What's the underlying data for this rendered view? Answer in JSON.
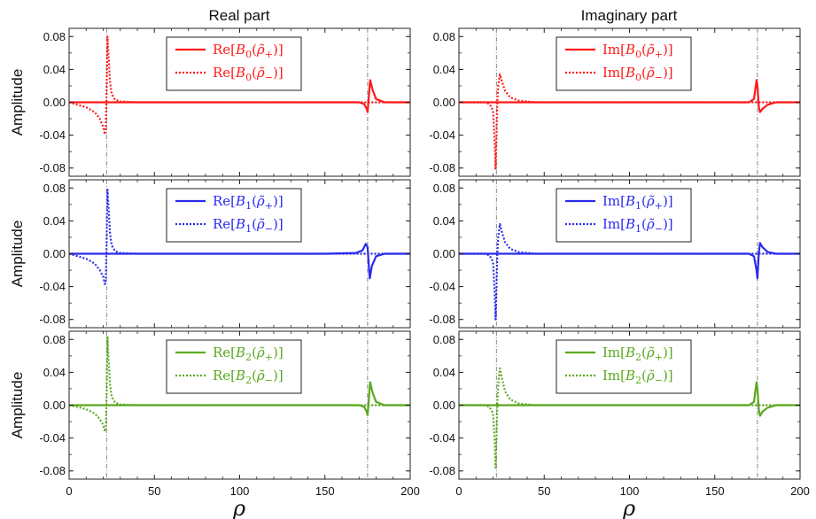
{
  "figure": {
    "col_titles": [
      "Real part",
      "Imaginary part"
    ],
    "ylabel": "Amplitude",
    "xlabel": "ρ",
    "colors": {
      "B0": "#ff1a1a",
      "B1": "#2a2aee",
      "B2": "#5aa81e",
      "vline": "#888888"
    },
    "line_styles": {
      "plus": "solid",
      "minus": "dotted"
    }
  },
  "chart_data": [
    {
      "type": "line",
      "row": 0,
      "col": 0,
      "xlim": [
        0,
        200
      ],
      "ylim": [
        -0.09,
        0.09
      ],
      "xticks": [
        0,
        50,
        100,
        150,
        200
      ],
      "yticks": [
        -0.08,
        -0.04,
        0.0,
        0.04,
        0.08
      ],
      "ytick_labels": [
        "-0.08",
        "-0.04",
        "0.00",
        "0.04",
        "0.08"
      ],
      "vlines": [
        22,
        175
      ],
      "series": [
        {
          "name": "Re[B0(ρ̃+)]",
          "legend": {
            "op": "Re",
            "sub": "0",
            "sign": "+"
          },
          "style": "solid",
          "color": "#ff1a1a",
          "x": [
            0,
            150,
            170,
            173,
            174.5,
            175,
            175.5,
            176.5,
            178,
            180,
            185,
            200
          ],
          "y": [
            0,
            0,
            0,
            -0.002,
            -0.008,
            -0.012,
            0.0,
            0.027,
            0.015,
            0.004,
            0.0,
            0
          ]
        },
        {
          "name": "Re[B0(ρ̃−)]",
          "legend": {
            "op": "Re",
            "sub": "0",
            "sign": "−"
          },
          "style": "dotted",
          "color": "#ff1a1a",
          "x": [
            0,
            5,
            10,
            15,
            18,
            20,
            21,
            21.5,
            22,
            22.5,
            23,
            24,
            25,
            27,
            30,
            40,
            200
          ],
          "y": [
            0,
            -0.003,
            -0.006,
            -0.012,
            -0.02,
            -0.03,
            -0.039,
            -0.03,
            0.01,
            0.08,
            0.06,
            0.025,
            0.01,
            0.003,
            0.001,
            0,
            0
          ]
        }
      ]
    },
    {
      "type": "line",
      "row": 0,
      "col": 1,
      "xlim": [
        0,
        200
      ],
      "ylim": [
        -0.09,
        0.09
      ],
      "xticks": [
        0,
        50,
        100,
        150,
        200
      ],
      "yticks": [
        -0.08,
        -0.04,
        0.0,
        0.04,
        0.08
      ],
      "ytick_labels": [
        "-0.08",
        "-0.04",
        "0.00",
        "0.04",
        "0.08"
      ],
      "vlines": [
        22,
        175
      ],
      "series": [
        {
          "name": "Im[B0(ρ̃+)]",
          "legend": {
            "op": "Im",
            "sub": "0",
            "sign": "+"
          },
          "style": "solid",
          "color": "#ff1a1a",
          "x": [
            0,
            150,
            170,
            173,
            174.5,
            175,
            175.8,
            176.5,
            178,
            181,
            186,
            200
          ],
          "y": [
            0,
            0,
            0,
            0.004,
            0.027,
            0.02,
            -0.005,
            -0.012,
            -0.008,
            -0.003,
            0,
            0
          ]
        },
        {
          "name": "Im[B0(ρ̃−)]",
          "legend": {
            "op": "Im",
            "sub": "0",
            "sign": "−"
          },
          "style": "dotted",
          "color": "#ff1a1a",
          "x": [
            0,
            15,
            18,
            20,
            21,
            21.5,
            22,
            22.5,
            23,
            24,
            25,
            27,
            30,
            35,
            45,
            200
          ],
          "y": [
            0,
            0,
            -0.002,
            -0.01,
            -0.05,
            -0.082,
            -0.04,
            0.0,
            0.02,
            0.034,
            0.027,
            0.014,
            0.006,
            0.002,
            0,
            0
          ]
        }
      ]
    },
    {
      "type": "line",
      "row": 1,
      "col": 0,
      "xlim": [
        0,
        200
      ],
      "ylim": [
        -0.09,
        0.09
      ],
      "xticks": [
        0,
        50,
        100,
        150,
        200
      ],
      "yticks": [
        -0.08,
        -0.04,
        0.0,
        0.04,
        0.08
      ],
      "ytick_labels": [
        "-0.08",
        "-0.04",
        "0.00",
        "0.04",
        "0.08"
      ],
      "vlines": [
        22,
        175
      ],
      "series": [
        {
          "name": "Re[B1(ρ̃+)]",
          "legend": {
            "op": "Re",
            "sub": "1",
            "sign": "+"
          },
          "style": "solid",
          "color": "#2a2aee",
          "x": [
            0,
            150,
            168,
            172,
            174,
            175,
            175.6,
            176.3,
            177.5,
            180,
            185,
            200
          ],
          "y": [
            0,
            0,
            0.001,
            0.004,
            0.012,
            0.008,
            -0.01,
            -0.03,
            -0.015,
            -0.003,
            0,
            0
          ]
        },
        {
          "name": "Re[B1(ρ̃−)]",
          "legend": {
            "op": "Re",
            "sub": "1",
            "sign": "−"
          },
          "style": "dotted",
          "color": "#2a2aee",
          "x": [
            0,
            5,
            10,
            15,
            18,
            20,
            21,
            21.5,
            22,
            22.5,
            23,
            24,
            25,
            27,
            30,
            40,
            200
          ],
          "y": [
            0,
            -0.003,
            -0.006,
            -0.012,
            -0.02,
            -0.028,
            -0.037,
            -0.03,
            0.01,
            0.078,
            0.06,
            0.025,
            0.01,
            0.003,
            0.001,
            0,
            0
          ]
        }
      ]
    },
    {
      "type": "line",
      "row": 1,
      "col": 1,
      "xlim": [
        0,
        200
      ],
      "ylim": [
        -0.09,
        0.09
      ],
      "xticks": [
        0,
        50,
        100,
        150,
        200
      ],
      "yticks": [
        -0.08,
        -0.04,
        0.0,
        0.04,
        0.08
      ],
      "ytick_labels": [
        "-0.08",
        "-0.04",
        "0.00",
        "0.04",
        "0.08"
      ],
      "vlines": [
        22,
        175
      ],
      "series": [
        {
          "name": "Im[B1(ρ̃+)]",
          "legend": {
            "op": "Im",
            "sub": "1",
            "sign": "+"
          },
          "style": "solid",
          "color": "#2a2aee",
          "x": [
            0,
            150,
            170,
            173,
            174.5,
            175,
            175.8,
            176.5,
            178,
            181,
            186,
            200
          ],
          "y": [
            0,
            0,
            0,
            -0.003,
            -0.02,
            -0.03,
            0.0,
            0.013,
            0.008,
            0.002,
            0,
            0
          ]
        },
        {
          "name": "Im[B1(ρ̃−)]",
          "legend": {
            "op": "Im",
            "sub": "1",
            "sign": "−"
          },
          "style": "dotted",
          "color": "#2a2aee",
          "x": [
            0,
            15,
            18,
            20,
            21,
            21.5,
            22,
            22.5,
            23,
            24,
            25,
            27,
            30,
            35,
            45,
            200
          ],
          "y": [
            0,
            0,
            -0.002,
            -0.01,
            -0.05,
            -0.08,
            -0.04,
            0.0,
            0.02,
            0.036,
            0.028,
            0.014,
            0.006,
            0.002,
            0,
            0
          ]
        }
      ]
    },
    {
      "type": "line",
      "row": 2,
      "col": 0,
      "xlim": [
        0,
        200
      ],
      "ylim": [
        -0.09,
        0.09
      ],
      "xticks": [
        0,
        50,
        100,
        150,
        200
      ],
      "yticks": [
        -0.08,
        -0.04,
        0.0,
        0.04,
        0.08
      ],
      "ytick_labels": [
        "-0.08",
        "-0.04",
        "0.00",
        "0.04",
        "0.08"
      ],
      "vlines": [
        22,
        175
      ],
      "series": [
        {
          "name": "Re[B2(ρ̃+)]",
          "legend": {
            "op": "Re",
            "sub": "2",
            "sign": "+"
          },
          "style": "solid",
          "color": "#5aa81e",
          "x": [
            0,
            150,
            170,
            173,
            174.5,
            175,
            175.5,
            176.5,
            178,
            180,
            185,
            200
          ],
          "y": [
            0,
            0,
            0,
            -0.002,
            -0.008,
            -0.012,
            0.0,
            0.028,
            0.015,
            0.004,
            0.0,
            0
          ]
        },
        {
          "name": "Re[B2(ρ̃−)]",
          "legend": {
            "op": "Re",
            "sub": "2",
            "sign": "−"
          },
          "style": "dotted",
          "color": "#5aa81e",
          "x": [
            0,
            5,
            10,
            15,
            18,
            20,
            21,
            21.5,
            22,
            22.5,
            23,
            24,
            25,
            27,
            30,
            40,
            200
          ],
          "y": [
            0,
            -0.002,
            -0.005,
            -0.01,
            -0.017,
            -0.024,
            -0.032,
            -0.025,
            0.01,
            0.084,
            0.06,
            0.025,
            0.01,
            0.003,
            0.001,
            0,
            0
          ]
        }
      ]
    },
    {
      "type": "line",
      "row": 2,
      "col": 1,
      "xlim": [
        0,
        200
      ],
      "ylim": [
        -0.09,
        0.09
      ],
      "xticks": [
        0,
        50,
        100,
        150,
        200
      ],
      "yticks": [
        -0.08,
        -0.04,
        0.0,
        0.04,
        0.08
      ],
      "ytick_labels": [
        "-0.08",
        "-0.04",
        "0.00",
        "0.04",
        "0.08"
      ],
      "vlines": [
        22,
        175
      ],
      "series": [
        {
          "name": "Im[B2(ρ̃+)]",
          "legend": {
            "op": "Im",
            "sub": "2",
            "sign": "+"
          },
          "style": "solid",
          "color": "#5aa81e",
          "x": [
            0,
            150,
            170,
            173,
            174.5,
            175,
            175.8,
            176.5,
            178,
            181,
            186,
            200
          ],
          "y": [
            0,
            0,
            0,
            0.004,
            0.028,
            0.02,
            -0.005,
            -0.013,
            -0.008,
            -0.003,
            0,
            0
          ]
        },
        {
          "name": "Im[B2(ρ̃−)]",
          "legend": {
            "op": "Im",
            "sub": "2",
            "sign": "−"
          },
          "style": "dotted",
          "color": "#5aa81e",
          "x": [
            0,
            15,
            18,
            20,
            21,
            21.5,
            22,
            22.5,
            23,
            24,
            25,
            27,
            30,
            35,
            45,
            200
          ],
          "y": [
            0,
            0,
            -0.002,
            -0.01,
            -0.045,
            -0.076,
            -0.04,
            0.0,
            0.025,
            0.045,
            0.035,
            0.017,
            0.007,
            0.002,
            0,
            0
          ]
        }
      ]
    }
  ]
}
